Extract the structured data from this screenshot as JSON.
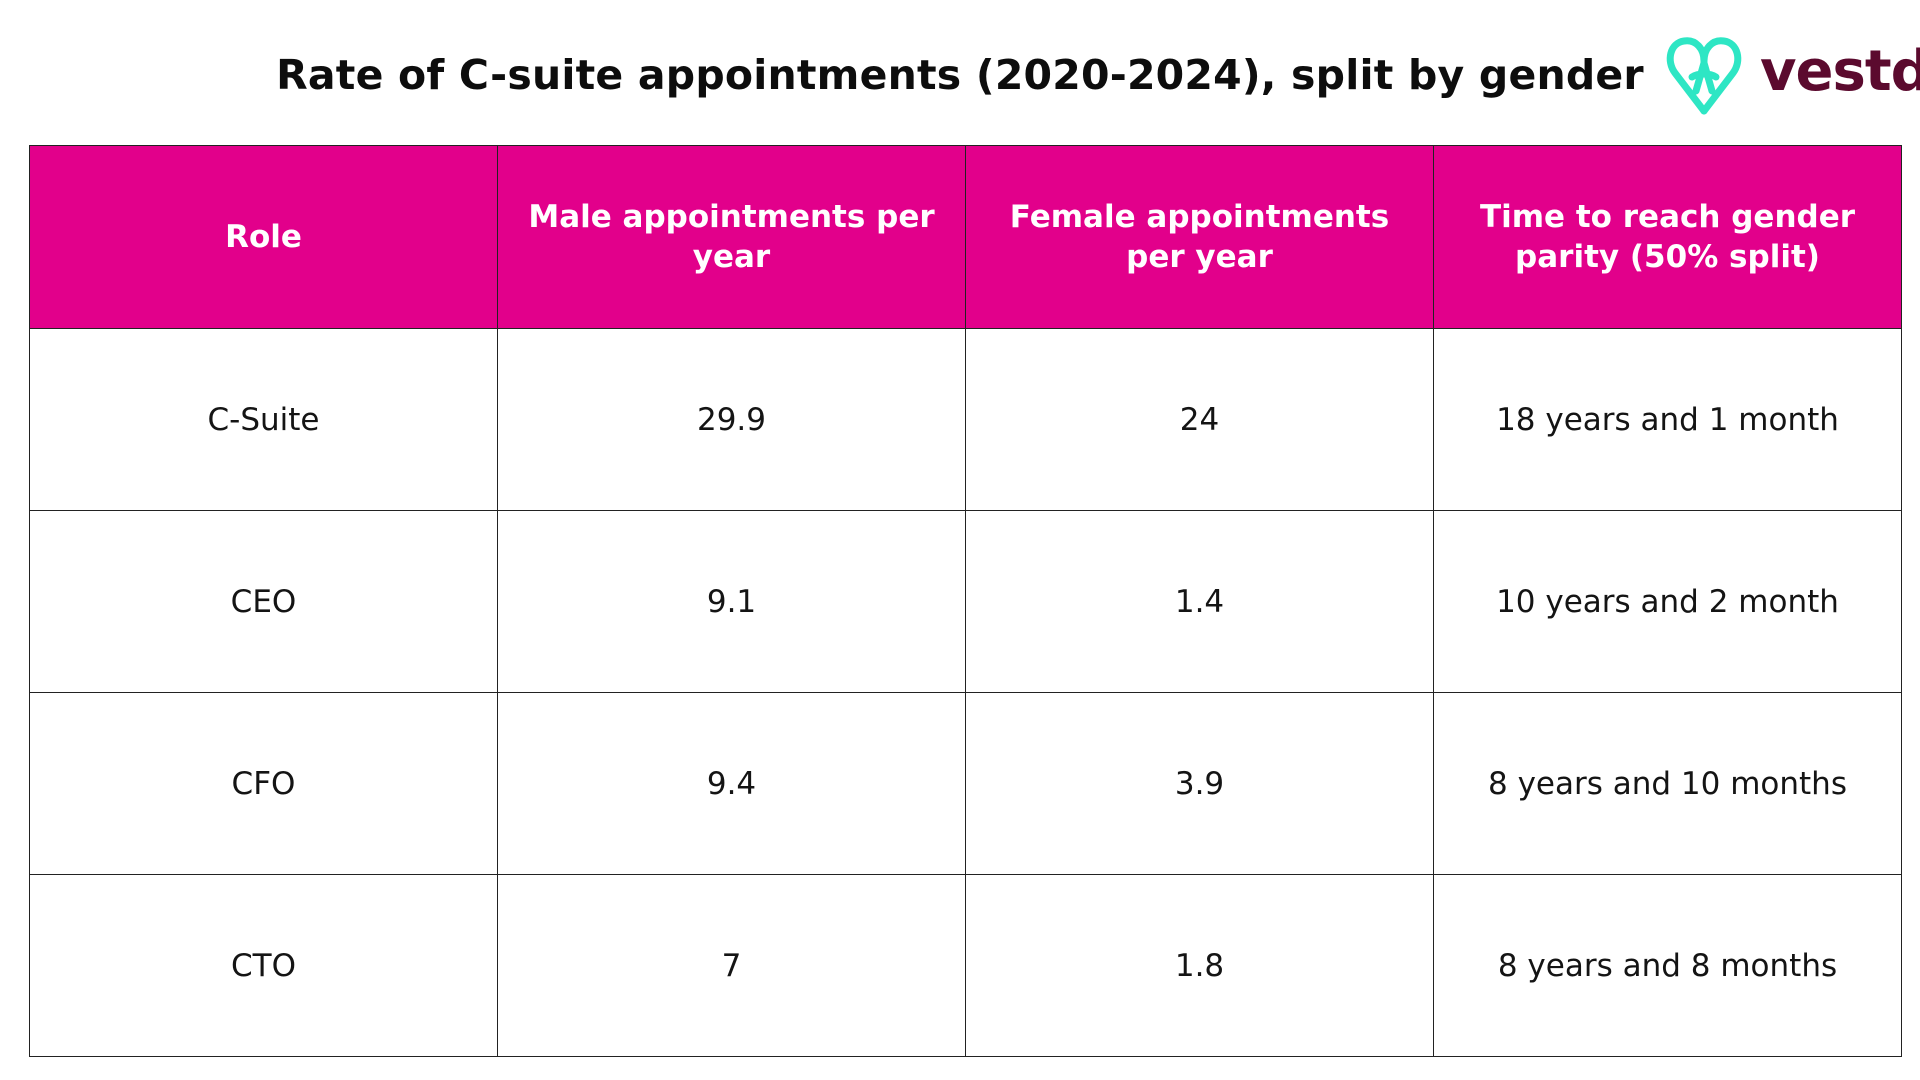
{
  "title": "Rate of C-suite appointments (2020-2024), split by gender",
  "logo": {
    "text": "vestd",
    "icon": "vestd-heart-icon",
    "icon_color": "#2ee6c4",
    "text_color": "#5b0a2e"
  },
  "colors": {
    "header_background": "#e2008b",
    "header_text": "#ffffff",
    "border": "#222222"
  },
  "chart_data": {
    "type": "table",
    "title": "Rate of C-suite appointments (2020-2024), split by gender",
    "columns": [
      "Role",
      "Male appointments per year",
      "Female appointments per year",
      "Time to reach gender parity (50% split)"
    ],
    "rows": [
      [
        "C-Suite",
        "29.9",
        "24",
        "18 years and 1 month"
      ],
      [
        "CEO",
        "9.1",
        "1.4",
        "10 years and 2 month"
      ],
      [
        "CFO",
        "9.4",
        "3.9",
        "8 years and 10 months"
      ],
      [
        "CTO",
        "7",
        "1.8",
        "8 years and 8 months"
      ]
    ]
  }
}
